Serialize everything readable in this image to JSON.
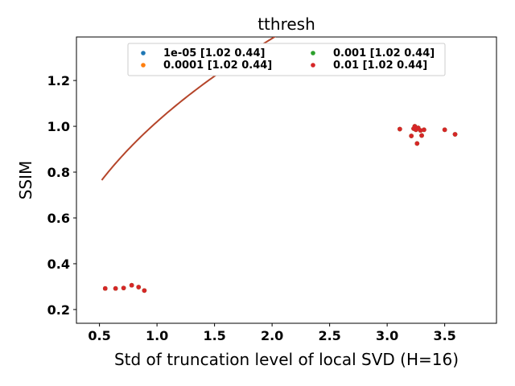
{
  "chart_data": {
    "type": "scatter",
    "title": "tthresh",
    "xlabel": "Std of truncation level of local SVD (H=16)",
    "ylabel": "SSIM",
    "xlim": [
      0.3,
      3.95
    ],
    "ylim": [
      0.14,
      1.39
    ],
    "xticks": [
      0.5,
      1.0,
      1.5,
      2.0,
      2.5,
      3.0,
      3.5
    ],
    "xtick_labels": [
      "0.5",
      "1.0",
      "1.5",
      "2.0",
      "2.5",
      "3.0",
      "3.5"
    ],
    "yticks": [
      0.2,
      0.4,
      0.6,
      0.8,
      1.0,
      1.2
    ],
    "ytick_labels": [
      "0.2",
      "0.4",
      "0.6",
      "0.8",
      "1.0",
      "1.2"
    ],
    "grid": false,
    "legend_position": "top-center",
    "series": [
      {
        "name": "1e-05 [1.02 0.44]",
        "color": "#1f77b4",
        "points": [
          [
            0.55,
            0.292
          ],
          [
            0.64,
            0.292
          ],
          [
            0.71,
            0.294
          ],
          [
            0.78,
            0.306
          ],
          [
            0.84,
            0.298
          ],
          [
            0.89,
            0.283
          ],
          [
            3.11,
            0.988
          ],
          [
            3.21,
            0.958
          ],
          [
            3.23,
            0.99
          ],
          [
            3.24,
            1.0
          ],
          [
            3.25,
            0.985
          ],
          [
            3.26,
            0.925
          ],
          [
            3.27,
            0.993
          ],
          [
            3.29,
            0.982
          ],
          [
            3.3,
            0.96
          ],
          [
            3.32,
            0.985
          ],
          [
            3.5,
            0.985
          ],
          [
            3.59,
            0.965
          ]
        ]
      },
      {
        "name": "0.0001 [1.02 0.44]",
        "color": "#ff7f0e",
        "points": [
          [
            0.55,
            0.292
          ],
          [
            0.64,
            0.292
          ],
          [
            0.71,
            0.294
          ],
          [
            0.78,
            0.306
          ],
          [
            0.84,
            0.298
          ],
          [
            0.89,
            0.283
          ],
          [
            3.11,
            0.988
          ],
          [
            3.21,
            0.958
          ],
          [
            3.23,
            0.99
          ],
          [
            3.24,
            1.0
          ],
          [
            3.25,
            0.985
          ],
          [
            3.26,
            0.925
          ],
          [
            3.27,
            0.993
          ],
          [
            3.29,
            0.982
          ],
          [
            3.3,
            0.96
          ],
          [
            3.32,
            0.985
          ],
          [
            3.5,
            0.985
          ],
          [
            3.59,
            0.965
          ]
        ]
      },
      {
        "name": "0.001 [1.02 0.44]",
        "color": "#2ca02c",
        "points": [
          [
            0.55,
            0.292
          ],
          [
            0.64,
            0.292
          ],
          [
            0.71,
            0.294
          ],
          [
            0.78,
            0.306
          ],
          [
            0.84,
            0.298
          ],
          [
            0.89,
            0.283
          ],
          [
            3.11,
            0.988
          ],
          [
            3.21,
            0.958
          ],
          [
            3.23,
            0.99
          ],
          [
            3.24,
            1.0
          ],
          [
            3.25,
            0.985
          ],
          [
            3.26,
            0.925
          ],
          [
            3.27,
            0.993
          ],
          [
            3.29,
            0.982
          ],
          [
            3.3,
            0.96
          ],
          [
            3.32,
            0.985
          ],
          [
            3.5,
            0.985
          ],
          [
            3.59,
            0.965
          ]
        ]
      },
      {
        "name": "0.01 [1.02 0.44]",
        "color": "#d62728",
        "points": [
          [
            0.55,
            0.292
          ],
          [
            0.64,
            0.292
          ],
          [
            0.71,
            0.294
          ],
          [
            0.78,
            0.306
          ],
          [
            0.84,
            0.298
          ],
          [
            0.89,
            0.283
          ],
          [
            3.11,
            0.988
          ],
          [
            3.21,
            0.958
          ],
          [
            3.23,
            0.99
          ],
          [
            3.24,
            1.0
          ],
          [
            3.25,
            0.985
          ],
          [
            3.26,
            0.925
          ],
          [
            3.27,
            0.993
          ],
          [
            3.29,
            0.982
          ],
          [
            3.3,
            0.96
          ],
          [
            3.32,
            0.985
          ],
          [
            3.5,
            0.985
          ],
          [
            3.59,
            0.965
          ]
        ]
      }
    ],
    "fit": {
      "model": "y = a*x^b",
      "params": [
        1.02,
        0.44
      ],
      "color": "#b5452a",
      "x_range": [
        0.52,
        3.57
      ]
    }
  }
}
